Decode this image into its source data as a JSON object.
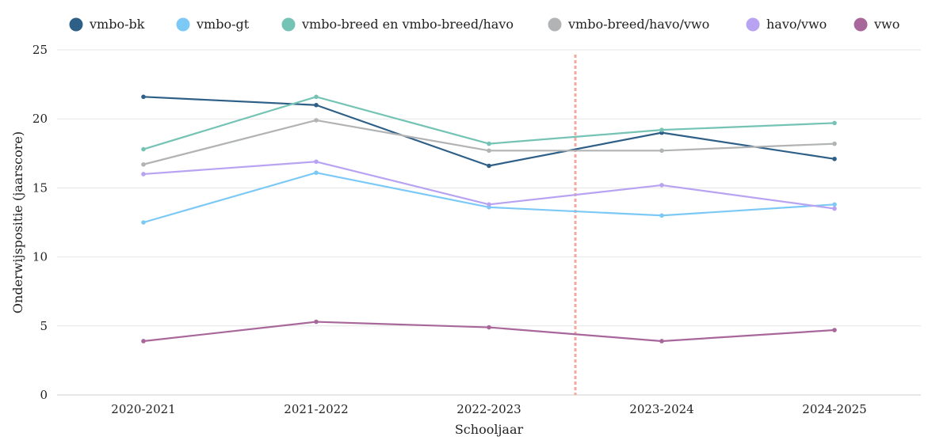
{
  "chart_data": {
    "type": "line",
    "xlabel": "Schooljaar",
    "ylabel": "Onderwijspositie (jaarscore)",
    "categories": [
      "2020-2021",
      "2021-2022",
      "2022-2023",
      "2023-2024",
      "2024-2025"
    ],
    "ylim": [
      0,
      25
    ],
    "yticks": [
      0,
      5,
      10,
      15,
      20,
      25
    ],
    "grid": true,
    "legend_position": "top",
    "series": [
      {
        "name": "vmbo-bk",
        "color": "#2e5f87",
        "values": [
          21.6,
          21.0,
          16.6,
          19.0,
          17.1
        ]
      },
      {
        "name": "vmbo-gt",
        "color": "#7cc9f5",
        "values": [
          12.5,
          16.1,
          13.6,
          13.0,
          13.8
        ]
      },
      {
        "name": "vmbo-breed en vmbo-breed/havo",
        "color": "#74c3b5",
        "values": [
          17.8,
          21.6,
          18.2,
          19.2,
          19.7
        ]
      },
      {
        "name": "vmbo-breed/havo/vwo",
        "color": "#b1b3b4",
        "values": [
          16.7,
          19.9,
          17.7,
          17.7,
          18.2
        ]
      },
      {
        "name": "havo/vwo",
        "color": "#b8a2f2",
        "values": [
          16.0,
          16.9,
          13.8,
          15.2,
          13.5
        ]
      },
      {
        "name": "vwo",
        "color": "#a8679a",
        "values": [
          3.9,
          5.3,
          4.9,
          3.9,
          4.7
        ]
      }
    ],
    "reference_line": {
      "position_between": [
        "2022-2023",
        "2023-2024"
      ],
      "style": "dashed",
      "color": "#f4a9a0"
    }
  }
}
